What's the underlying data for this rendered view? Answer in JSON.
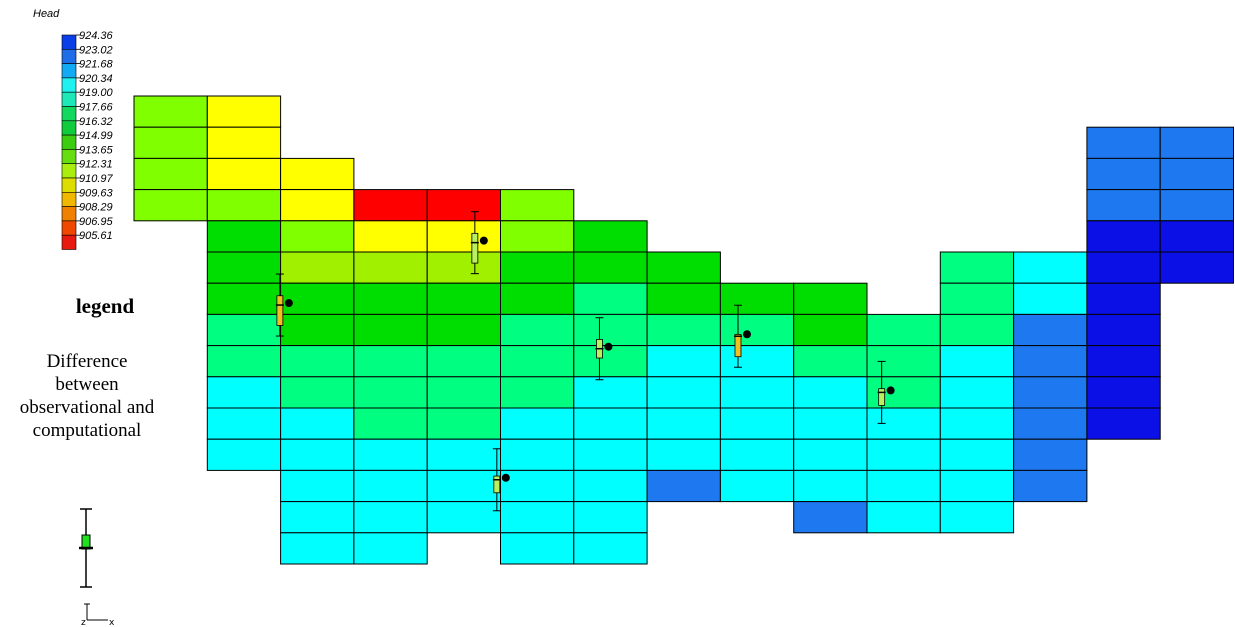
{
  "colorbar": {
    "title": "Head",
    "labels": [
      "924.36",
      "923.02",
      "921.68",
      "920.34",
      "919.00",
      "917.66",
      "916.32",
      "914.99",
      "913.65",
      "912.31",
      "910.97",
      "909.63",
      "908.29",
      "906.95",
      "905.61"
    ],
    "colors": [
      "#0a3ee6",
      "#1f6ee8",
      "#12aaf2",
      "#1ff0f0",
      "#1fe8b8",
      "#12d860",
      "#10cc3c",
      "#3ccc10",
      "#66dd10",
      "#aaee10",
      "#dddd00",
      "#f0b800",
      "#f08000",
      "#f04800",
      "#e81a10"
    ]
  },
  "legend": {
    "title": "legend",
    "description_lines": [
      "Difference",
      "between",
      "observational and",
      "computational"
    ]
  },
  "axis_triad": {
    "z_label": "z",
    "x_label": "x"
  },
  "grid_colors": {
    "red": "#ff0000",
    "yellow": "#ffff00",
    "yellowgreen": "#a0f000",
    "lightgreen": "#80ff00",
    "green": "#00dd00",
    "mintgreen": "#00ff80",
    "cyan": "#00ffff",
    "blue": "#1e78f0",
    "deepblue": "#0a10e6"
  },
  "cells": [
    {
      "r": 0,
      "c": 0,
      "k": "lightgreen"
    },
    {
      "r": 0,
      "c": 1,
      "k": "yellow"
    },
    {
      "r": 1,
      "c": 0,
      "k": "lightgreen"
    },
    {
      "r": 1,
      "c": 1,
      "k": "yellow"
    },
    {
      "r": 2,
      "c": 0,
      "k": "lightgreen"
    },
    {
      "r": 2,
      "c": 1,
      "k": "yellow"
    },
    {
      "r": 2,
      "c": 2,
      "k": "yellow"
    },
    {
      "r": 3,
      "c": 0,
      "k": "lightgreen"
    },
    {
      "r": 3,
      "c": 1,
      "k": "lightgreen"
    },
    {
      "r": 3,
      "c": 2,
      "k": "yellow"
    },
    {
      "r": 3,
      "c": 3,
      "k": "red"
    },
    {
      "r": 3,
      "c": 4,
      "k": "red"
    },
    {
      "r": 3,
      "c": 5,
      "k": "lightgreen"
    },
    {
      "r": 4,
      "c": 1,
      "k": "green"
    },
    {
      "r": 4,
      "c": 2,
      "k": "lightgreen"
    },
    {
      "r": 4,
      "c": 3,
      "k": "yellow"
    },
    {
      "r": 4,
      "c": 4,
      "k": "yellow"
    },
    {
      "r": 4,
      "c": 5,
      "k": "lightgreen"
    },
    {
      "r": 4,
      "c": 6,
      "k": "green"
    },
    {
      "r": 5,
      "c": 1,
      "k": "green"
    },
    {
      "r": 5,
      "c": 2,
      "k": "yellowgreen"
    },
    {
      "r": 5,
      "c": 3,
      "k": "yellowgreen"
    },
    {
      "r": 5,
      "c": 4,
      "k": "yellowgreen"
    },
    {
      "r": 5,
      "c": 5,
      "k": "green"
    },
    {
      "r": 5,
      "c": 6,
      "k": "green"
    },
    {
      "r": 5,
      "c": 7,
      "k": "green"
    },
    {
      "r": 5,
      "c": 11,
      "k": "mintgreen"
    },
    {
      "r": 5,
      "c": 12,
      "k": "cyan"
    },
    {
      "r": 6,
      "c": 1,
      "k": "green"
    },
    {
      "r": 6,
      "c": 2,
      "k": "green"
    },
    {
      "r": 6,
      "c": 3,
      "k": "green"
    },
    {
      "r": 6,
      "c": 4,
      "k": "green"
    },
    {
      "r": 6,
      "c": 5,
      "k": "green"
    },
    {
      "r": 6,
      "c": 6,
      "k": "mintgreen"
    },
    {
      "r": 6,
      "c": 7,
      "k": "green"
    },
    {
      "r": 6,
      "c": 8,
      "k": "green"
    },
    {
      "r": 6,
      "c": 9,
      "k": "green"
    },
    {
      "r": 6,
      "c": 11,
      "k": "mintgreen"
    },
    {
      "r": 6,
      "c": 12,
      "k": "cyan"
    },
    {
      "r": 7,
      "c": 1,
      "k": "mintgreen"
    },
    {
      "r": 7,
      "c": 2,
      "k": "green"
    },
    {
      "r": 7,
      "c": 3,
      "k": "green"
    },
    {
      "r": 7,
      "c": 4,
      "k": "green"
    },
    {
      "r": 7,
      "c": 5,
      "k": "mintgreen"
    },
    {
      "r": 7,
      "c": 6,
      "k": "mintgreen"
    },
    {
      "r": 7,
      "c": 7,
      "k": "mintgreen"
    },
    {
      "r": 7,
      "c": 8,
      "k": "mintgreen"
    },
    {
      "r": 7,
      "c": 9,
      "k": "green"
    },
    {
      "r": 7,
      "c": 10,
      "k": "mintgreen"
    },
    {
      "r": 7,
      "c": 11,
      "k": "mintgreen"
    },
    {
      "r": 7,
      "c": 12,
      "k": "blue"
    },
    {
      "r": 8,
      "c": 1,
      "k": "mintgreen"
    },
    {
      "r": 8,
      "c": 2,
      "k": "mintgreen"
    },
    {
      "r": 8,
      "c": 3,
      "k": "mintgreen"
    },
    {
      "r": 8,
      "c": 4,
      "k": "mintgreen"
    },
    {
      "r": 8,
      "c": 5,
      "k": "mintgreen"
    },
    {
      "r": 8,
      "c": 6,
      "k": "mintgreen"
    },
    {
      "r": 8,
      "c": 7,
      "k": "cyan"
    },
    {
      "r": 8,
      "c": 8,
      "k": "cyan"
    },
    {
      "r": 8,
      "c": 9,
      "k": "mintgreen"
    },
    {
      "r": 8,
      "c": 10,
      "k": "mintgreen"
    },
    {
      "r": 8,
      "c": 11,
      "k": "cyan"
    },
    {
      "r": 8,
      "c": 12,
      "k": "blue"
    },
    {
      "r": 9,
      "c": 1,
      "k": "cyan"
    },
    {
      "r": 9,
      "c": 2,
      "k": "mintgreen"
    },
    {
      "r": 9,
      "c": 3,
      "k": "mintgreen"
    },
    {
      "r": 9,
      "c": 4,
      "k": "mintgreen"
    },
    {
      "r": 9,
      "c": 5,
      "k": "mintgreen"
    },
    {
      "r": 9,
      "c": 6,
      "k": "cyan"
    },
    {
      "r": 9,
      "c": 7,
      "k": "cyan"
    },
    {
      "r": 9,
      "c": 8,
      "k": "cyan"
    },
    {
      "r": 9,
      "c": 9,
      "k": "cyan"
    },
    {
      "r": 9,
      "c": 10,
      "k": "mintgreen"
    },
    {
      "r": 9,
      "c": 11,
      "k": "cyan"
    },
    {
      "r": 9,
      "c": 12,
      "k": "blue"
    },
    {
      "r": 10,
      "c": 1,
      "k": "cyan"
    },
    {
      "r": 10,
      "c": 2,
      "k": "cyan"
    },
    {
      "r": 10,
      "c": 3,
      "k": "mintgreen"
    },
    {
      "r": 10,
      "c": 4,
      "k": "mintgreen"
    },
    {
      "r": 10,
      "c": 5,
      "k": "cyan"
    },
    {
      "r": 10,
      "c": 6,
      "k": "cyan"
    },
    {
      "r": 10,
      "c": 7,
      "k": "cyan"
    },
    {
      "r": 10,
      "c": 8,
      "k": "cyan"
    },
    {
      "r": 10,
      "c": 9,
      "k": "cyan"
    },
    {
      "r": 10,
      "c": 10,
      "k": "cyan"
    },
    {
      "r": 10,
      "c": 11,
      "k": "cyan"
    },
    {
      "r": 10,
      "c": 12,
      "k": "blue"
    },
    {
      "r": 11,
      "c": 1,
      "k": "cyan"
    },
    {
      "r": 11,
      "c": 2,
      "k": "cyan"
    },
    {
      "r": 11,
      "c": 3,
      "k": "cyan"
    },
    {
      "r": 11,
      "c": 4,
      "k": "cyan"
    },
    {
      "r": 11,
      "c": 5,
      "k": "cyan"
    },
    {
      "r": 11,
      "c": 6,
      "k": "cyan"
    },
    {
      "r": 11,
      "c": 7,
      "k": "cyan"
    },
    {
      "r": 11,
      "c": 8,
      "k": "cyan"
    },
    {
      "r": 11,
      "c": 9,
      "k": "cyan"
    },
    {
      "r": 11,
      "c": 10,
      "k": "cyan"
    },
    {
      "r": 11,
      "c": 11,
      "k": "cyan"
    },
    {
      "r": 11,
      "c": 12,
      "k": "blue"
    },
    {
      "r": 12,
      "c": 2,
      "k": "cyan"
    },
    {
      "r": 12,
      "c": 3,
      "k": "cyan"
    },
    {
      "r": 12,
      "c": 4,
      "k": "cyan"
    },
    {
      "r": 12,
      "c": 5,
      "k": "cyan"
    },
    {
      "r": 12,
      "c": 6,
      "k": "cyan"
    },
    {
      "r": 12,
      "c": 7,
      "k": "blue"
    },
    {
      "r": 12,
      "c": 8,
      "k": "cyan"
    },
    {
      "r": 12,
      "c": 9,
      "k": "cyan"
    },
    {
      "r": 12,
      "c": 10,
      "k": "cyan"
    },
    {
      "r": 12,
      "c": 11,
      "k": "cyan"
    },
    {
      "r": 12,
      "c": 12,
      "k": "blue"
    },
    {
      "r": 13,
      "c": 2,
      "k": "cyan"
    },
    {
      "r": 13,
      "c": 3,
      "k": "cyan"
    },
    {
      "r": 13,
      "c": 4,
      "k": "cyan"
    },
    {
      "r": 13,
      "c": 5,
      "k": "cyan"
    },
    {
      "r": 13,
      "c": 6,
      "k": "cyan"
    },
    {
      "r": 13,
      "c": 9,
      "k": "blue"
    },
    {
      "r": 13,
      "c": 10,
      "k": "cyan"
    },
    {
      "r": 13,
      "c": 11,
      "k": "cyan"
    },
    {
      "r": 14,
      "c": 2,
      "k": "cyan"
    },
    {
      "r": 14,
      "c": 3,
      "k": "cyan"
    },
    {
      "r": 14,
      "c": 5,
      "k": "cyan"
    },
    {
      "r": 14,
      "c": 6,
      "k": "cyan"
    },
    {
      "r": 1,
      "c": 13,
      "k": "blue"
    },
    {
      "r": 1,
      "c": 14,
      "k": "blue"
    },
    {
      "r": 2,
      "c": 13,
      "k": "blue"
    },
    {
      "r": 2,
      "c": 14,
      "k": "blue"
    },
    {
      "r": 3,
      "c": 13,
      "k": "blue"
    },
    {
      "r": 3,
      "c": 14,
      "k": "blue"
    },
    {
      "r": 4,
      "c": 13,
      "k": "deepblue"
    },
    {
      "r": 4,
      "c": 14,
      "k": "deepblue"
    },
    {
      "r": 5,
      "c": 13,
      "k": "deepblue"
    },
    {
      "r": 5,
      "c": 14,
      "k": "deepblue"
    },
    {
      "r": 6,
      "c": 13,
      "k": "deepblue"
    },
    {
      "r": 7,
      "c": 13,
      "k": "deepblue"
    },
    {
      "r": 8,
      "c": 13,
      "k": "deepblue"
    },
    {
      "r": 9,
      "c": 13,
      "k": "deepblue"
    },
    {
      "r": 10,
      "c": 13,
      "k": "deepblue"
    }
  ],
  "targets": [
    {
      "col": 1.99,
      "row": 6.7,
      "bar_color": "#f0c020",
      "fill_from": -0.25,
      "fill_to": 0.55
    },
    {
      "col": 4.65,
      "row": 4.7,
      "bar_color": "#b8f060",
      "fill_from": -0.25,
      "fill_to": 0.55
    },
    {
      "col": 6.35,
      "row": 8.1,
      "bar_color": "#b8f060",
      "fill_from": -0.25,
      "fill_to": 0.25
    },
    {
      "col": 8.24,
      "row": 7.7,
      "bar_color": "#f0c020",
      "fill_from": -0.05,
      "fill_to": 0.55
    },
    {
      "col": 10.2,
      "row": 9.5,
      "bar_color": "#b8f060",
      "fill_from": -0.1,
      "fill_to": 0.35
    },
    {
      "col": 4.95,
      "row": 12.3,
      "bar_color": "#b8f060",
      "fill_from": -0.1,
      "fill_to": 0.35
    }
  ]
}
